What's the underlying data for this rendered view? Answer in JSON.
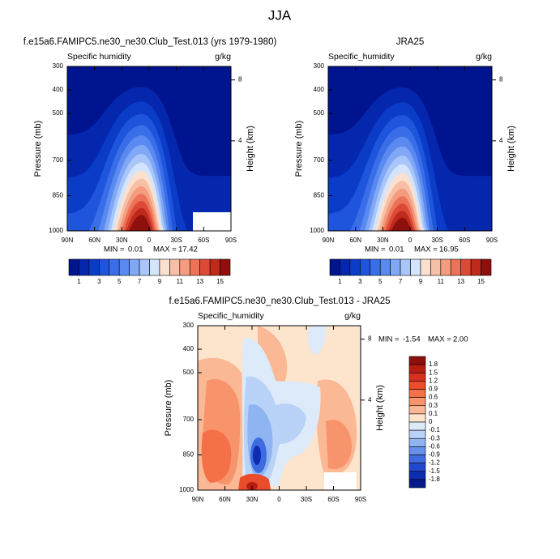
{
  "title": "JJA",
  "chart_data": [
    {
      "type": "contour",
      "title": "f.e15a6.FAMIPC5.ne30_ne30.Club_Test.013 (yrs 1979-1980)",
      "subtitle": "Specific humidity",
      "units": "g/kg",
      "ylabel": "Pressure (mb)",
      "y2label": "Height (km)",
      "xlim": [
        90,
        -90
      ],
      "xticks": [
        {
          "value": 90,
          "label": "90N"
        },
        {
          "value": 60,
          "label": "60N"
        },
        {
          "value": 30,
          "label": "30N"
        },
        0,
        {
          "value": -30,
          "label": "30S"
        },
        {
          "value": -60,
          "label": "60S"
        },
        {
          "value": -90,
          "label": "90S"
        }
      ],
      "ylim": [
        1000,
        300
      ],
      "yticks": [
        300,
        400,
        500,
        700,
        850,
        1000
      ],
      "y2lim": [
        0.1,
        9.2
      ],
      "y2ticks": [
        4,
        8
      ],
      "min_label": "MIN =",
      "min": 0.01,
      "max_label": "MAX =",
      "max": 17.42,
      "colorbar": {
        "orientation": "horizontal",
        "levels": [
          1,
          null,
          3,
          null,
          5,
          null,
          7,
          null,
          9,
          null,
          11,
          null,
          13,
          null,
          15
        ],
        "colors": [
          "#00148f",
          "#0527ae",
          "#0a3cc8",
          "#1e55dc",
          "#3a6ee8",
          "#5a8af0",
          "#80a8f6",
          "#a8c6fa",
          "#d4e4fc",
          "#fbe0d0",
          "#f7bfa5",
          "#f39c7e",
          "#ec7358",
          "#dc4a35",
          "#bf2a1c",
          "#8e0f0c"
        ]
      }
    },
    {
      "type": "contour",
      "title": "JRA25",
      "subtitle": "Specific_humidity",
      "units": "g/kg",
      "ylabel": "Pressure (mb)",
      "y2label": "Height (km)",
      "xlim": [
        90,
        -90
      ],
      "xticks": [
        {
          "value": 90,
          "label": "90N"
        },
        {
          "value": 60,
          "label": "60N"
        },
        {
          "value": 30,
          "label": "30N"
        },
        0,
        {
          "value": -30,
          "label": "30S"
        },
        {
          "value": -60,
          "label": "60S"
        },
        {
          "value": -90,
          "label": "90S"
        }
      ],
      "ylim": [
        1000,
        300
      ],
      "yticks": [
        300,
        400,
        500,
        700,
        850,
        1000
      ],
      "y2lim": [
        0.1,
        9.2
      ],
      "y2ticks": [
        4,
        8
      ],
      "min_label": "MIN =",
      "min": 0.01,
      "max_label": "MAX =",
      "max": 16.95,
      "colorbar": {
        "orientation": "horizontal",
        "levels": [
          1,
          null,
          3,
          null,
          5,
          null,
          7,
          null,
          9,
          null,
          11,
          null,
          13,
          null,
          15
        ],
        "colors": [
          "#00148f",
          "#0527ae",
          "#0a3cc8",
          "#1e55dc",
          "#3a6ee8",
          "#5a8af0",
          "#80a8f6",
          "#a8c6fa",
          "#d4e4fc",
          "#fbe0d0",
          "#f7bfa5",
          "#f39c7e",
          "#ec7358",
          "#dc4a35",
          "#bf2a1c",
          "#8e0f0c"
        ]
      }
    },
    {
      "type": "contour",
      "title": "f.e15a6.FAMIPC5.ne30_ne30.Club_Test.013 - JRA25",
      "subtitle": "Specific_humidity",
      "units": "g/kg",
      "ylabel": "Pressure (mb)",
      "y2label": "Height (km)",
      "xlim": [
        90,
        -90
      ],
      "xticks": [
        {
          "value": 90,
          "label": "90N"
        },
        {
          "value": 60,
          "label": "60N"
        },
        {
          "value": 30,
          "label": "30N"
        },
        0,
        {
          "value": -30,
          "label": "30S"
        },
        {
          "value": -60,
          "label": "60S"
        },
        {
          "value": -90,
          "label": "90S"
        }
      ],
      "ylim": [
        1000,
        300
      ],
      "yticks": [
        300,
        400,
        500,
        700,
        850,
        1000
      ],
      "y2lim": [
        0.1,
        9.2
      ],
      "y2ticks": [
        4,
        8
      ],
      "min_label": "MIN =",
      "min": -1.54,
      "max_label": "MAX =",
      "max": {
        "value": 2,
        "label": "2.00"
      },
      "colorbar": {
        "orientation": "vertical",
        "levels": [
          1.8,
          1.5,
          1.2,
          0.9,
          0.6,
          0.3,
          0.1,
          0,
          -0.1,
          -0.3,
          -0.6,
          -0.9,
          -1.2,
          -1.5,
          -1.8
        ],
        "colors": [
          "#8e0f0c",
          "#b81d14",
          "#d6301e",
          "#ea4c2c",
          "#f37048",
          "#f7946c",
          "#fab894",
          "#fde4cc",
          "#dceafa",
          "#b8d2f8",
          "#8fb4f2",
          "#6690ea",
          "#3f6be0",
          "#2248d0",
          "#0e2cb0",
          "#061a8a"
        ]
      }
    }
  ]
}
